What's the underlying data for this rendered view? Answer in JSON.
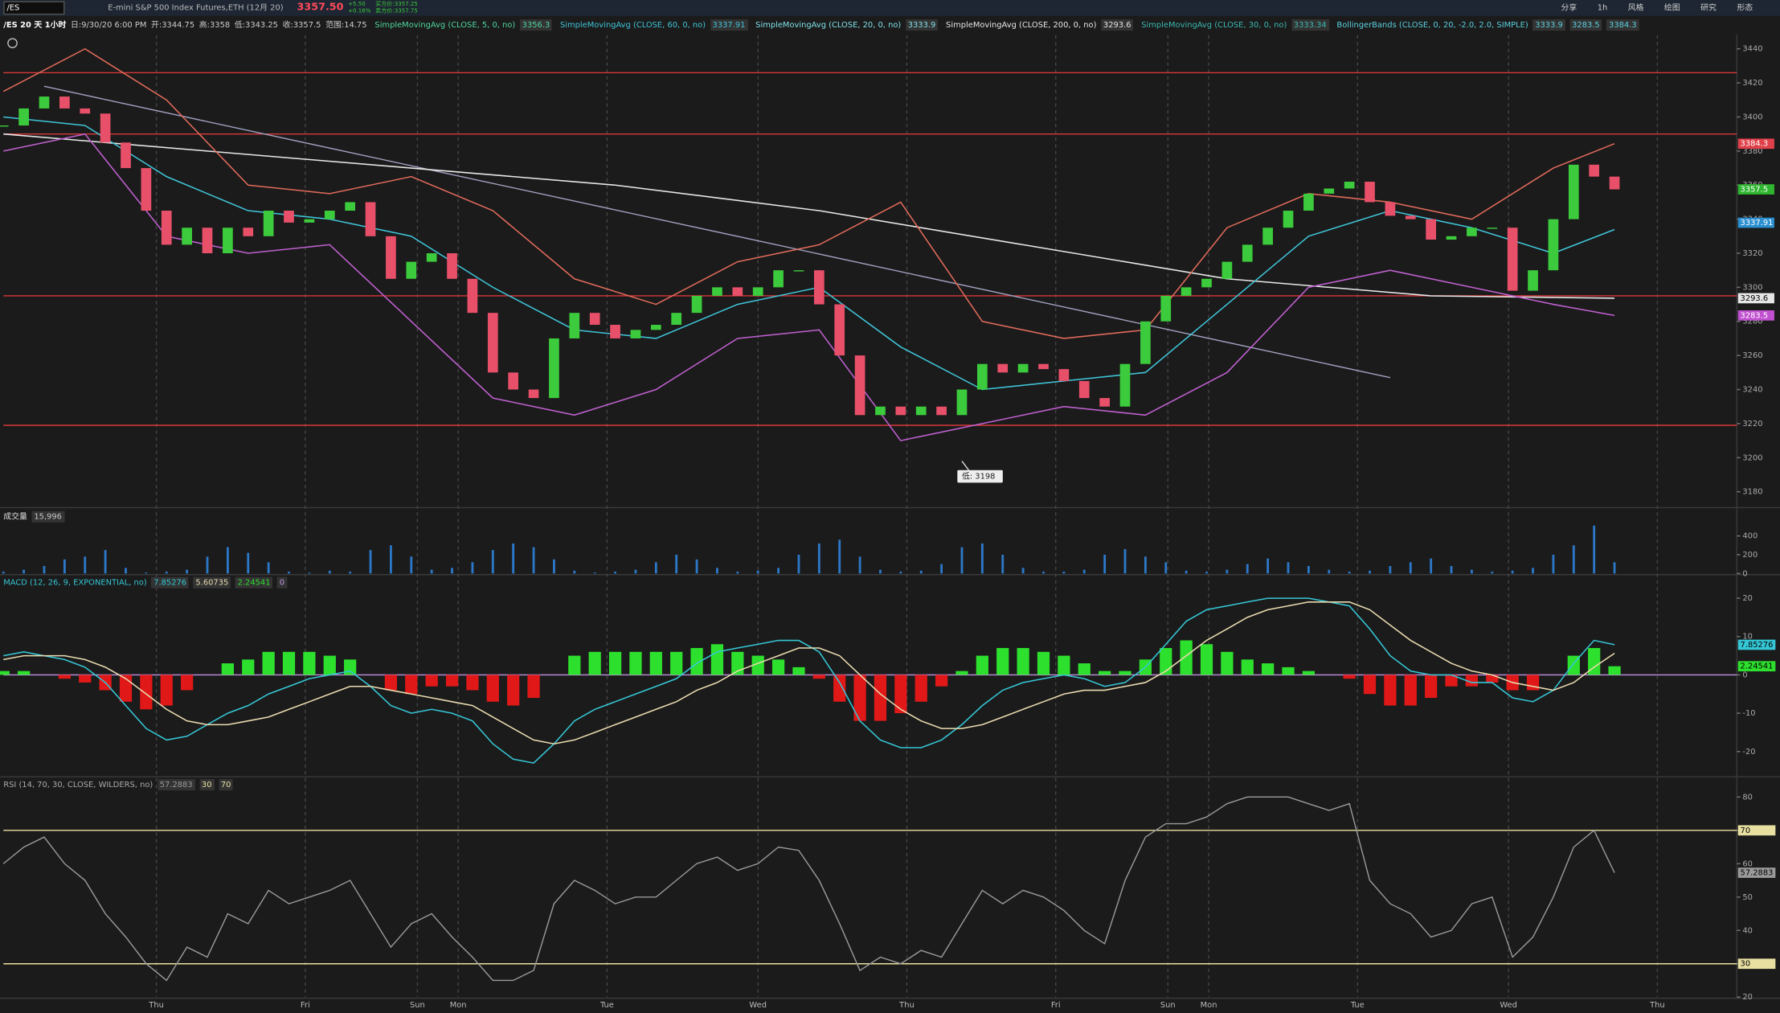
{
  "toolbar": {
    "symbol": "/ES",
    "description": "E-mini S&P 500 Index Futures,ETH (12月 20)",
    "last": "3357.50",
    "change": "+5.50",
    "change_pct": "+0.16%",
    "bid": "买方价:3357.25",
    "ask": "卖方价:3357.75",
    "buttons": [
      "分享",
      "1h",
      "风格",
      "绘图",
      "研究",
      "形态"
    ]
  },
  "header": {
    "chart_label": "/ES 20 天 1小时",
    "stats": [
      "日:9/30/20 6:00 PM",
      "开:3344.75",
      "高:3358",
      "低:3343.25",
      "收:3357.5",
      "范围:14.75"
    ],
    "studies": [
      {
        "name": "SimpleMovingAvg (CLOSE, 5, 0, no)",
        "color": "#4fd6a0",
        "values": [
          "3356.3"
        ]
      },
      {
        "name": "SimpleMovingAvg (CLOSE, 60, 0, no)",
        "color": "#3fc4d8",
        "values": [
          "3337.91"
        ]
      },
      {
        "name": "SimpleMovingAvg (CLOSE, 20, 0, no)",
        "color": "#7fe0e8",
        "values": [
          "3333.9"
        ]
      },
      {
        "name": "SimpleMovingAvg (CLOSE, 200, 0, no)",
        "color": "#e6e6e6",
        "values": [
          "3293.6"
        ]
      },
      {
        "name": "SimpleMovingAvg (CLOSE, 30, 0, no)",
        "color": "#3bb8b0",
        "values": [
          "3333.34"
        ]
      },
      {
        "name": "BollingerBands (CLOSE, 0, 20, -2.0, 2.0, SIMPLE)",
        "color": "#5ad0e0",
        "values": [
          "3333.9",
          "3283.5",
          "3384.3"
        ]
      }
    ]
  },
  "chart_data": [
    {
      "type": "candlestick",
      "values": [
        3395,
        3405,
        3412,
        3405,
        3402,
        3385,
        3370,
        3345,
        3325,
        3335,
        3320,
        3335,
        3330,
        3345,
        3338,
        3340,
        3345,
        3350,
        3330,
        3305,
        3315,
        3320,
        3305,
        3285,
        3250,
        3240,
        3235,
        3270,
        3285,
        3278,
        3270,
        3275,
        3278,
        3285,
        3295,
        3300,
        3295,
        3300,
        3310,
        3310,
        3290,
        3260,
        3225,
        3230,
        3225,
        3230,
        3225,
        3240,
        3255,
        3250,
        3255,
        3252,
        3245,
        3235,
        3230,
        3255,
        3280,
        3295,
        3300,
        3305,
        3315,
        3325,
        3335,
        3345,
        3355,
        3358,
        3362,
        3350,
        3342,
        3340,
        3328,
        3330,
        3335,
        3335,
        3298,
        3310,
        3340,
        3372,
        3365,
        3357.5
      ],
      "up_color": "#3ccb3c",
      "down_color": "#e8506a",
      "xlim": [
        0,
        85
      ],
      "xticks": [
        {
          "value": 7.5,
          "label": "Thu"
        },
        {
          "value": 14.8,
          "label": "Fri"
        },
        {
          "value": 20.3,
          "label": "Sun"
        },
        {
          "value": 22.3,
          "label": "Mon"
        },
        {
          "value": 29.6,
          "label": "Tue"
        },
        {
          "value": 37,
          "label": "Wed"
        },
        {
          "value": 44.3,
          "label": "Thu"
        },
        {
          "value": 51.6,
          "label": "Fri"
        },
        {
          "value": 57.1,
          "label": "Sun"
        },
        {
          "value": 59.1,
          "label": "Mon"
        },
        {
          "value": 66.4,
          "label": "Tue"
        },
        {
          "value": 73.8,
          "label": "Wed"
        },
        {
          "value": 81.1,
          "label": "Thu"
        }
      ],
      "ylim": [
        3172,
        3448
      ],
      "yticks": [
        3180,
        3200,
        3220,
        3240,
        3260,
        3280,
        3300,
        3320,
        3340,
        3360,
        3380,
        3400,
        3420,
        3440
      ],
      "series": [
        {
          "color": "#e8e8e8",
          "x": [
            0,
            10,
            20,
            30,
            40,
            50,
            60,
            70,
            79
          ],
          "values": [
            3390,
            3380,
            3370,
            3360,
            3345,
            3325,
            3305,
            3295,
            3293.6
          ]
        },
        {
          "color": "#e06a5a",
          "x": [
            0,
            4,
            8,
            12,
            16,
            20,
            24,
            28,
            32,
            36,
            40,
            44,
            48,
            52,
            56,
            60,
            64,
            68,
            72,
            76,
            79
          ],
          "values": [
            3415,
            3440,
            3410,
            3360,
            3355,
            3365,
            3345,
            3305,
            3290,
            3315,
            3325,
            3350,
            3280,
            3270,
            3275,
            3335,
            3355,
            3350,
            3340,
            3370,
            3384.3
          ]
        },
        {
          "color": "#c060d0",
          "x": [
            0,
            4,
            8,
            12,
            16,
            20,
            24,
            28,
            32,
            36,
            40,
            44,
            48,
            52,
            56,
            60,
            64,
            68,
            72,
            76,
            79
          ],
          "values": [
            3380,
            3390,
            3330,
            3320,
            3325,
            3280,
            3235,
            3225,
            3240,
            3270,
            3275,
            3210,
            3220,
            3230,
            3225,
            3250,
            3300,
            3310,
            3300,
            3290,
            3283.5
          ]
        },
        {
          "color": "#3fc4d8",
          "x": [
            0,
            4,
            8,
            12,
            16,
            20,
            24,
            28,
            32,
            36,
            40,
            44,
            48,
            52,
            56,
            60,
            64,
            68,
            72,
            76,
            79
          ],
          "values": [
            3400,
            3395,
            3365,
            3345,
            3340,
            3330,
            3300,
            3275,
            3270,
            3290,
            3300,
            3265,
            3240,
            3245,
            3250,
            3290,
            3330,
            3345,
            3335,
            3320,
            3333.9
          ]
        }
      ],
      "levels": [
        3426,
        3390,
        3295,
        3219
      ],
      "level_color": "#d8383a",
      "trendline": {
        "x": [
          2,
          68
        ],
        "values": [
          3418,
          3247
        ],
        "color": "#a0a0c0"
      },
      "price_tags": [
        {
          "value": 3384.3,
          "color": "#e0404a"
        },
        {
          "value": 3357.5,
          "color": "#2fb52f"
        },
        {
          "value": 3337.91,
          "color": "#2a8fd0"
        },
        {
          "value": 3293.6,
          "color": "#e6e6e6"
        },
        {
          "value": 3283.5,
          "color": "#c050d0"
        }
      ],
      "annotation": {
        "text": "低: 3198",
        "x": 47,
        "value": 3198
      }
    },
    {
      "type": "bar",
      "title": "成交量",
      "header_value": "15,996",
      "values": [
        20,
        40,
        80,
        150,
        180,
        250,
        60,
        10,
        20,
        40,
        180,
        280,
        220,
        120,
        20,
        10,
        30,
        20,
        250,
        300,
        180,
        40,
        60,
        120,
        250,
        320,
        280,
        150,
        30,
        10,
        20,
        40,
        120,
        200,
        150,
        60,
        20,
        30,
        60,
        200,
        320,
        360,
        180,
        40,
        20,
        30,
        100,
        280,
        320,
        200,
        60,
        20,
        20,
        40,
        200,
        260,
        180,
        120,
        30,
        20,
        40,
        100,
        160,
        120,
        80,
        40,
        20,
        30,
        80,
        120,
        160,
        80,
        40,
        20,
        30,
        60,
        200,
        300,
        510,
        120
      ],
      "color": "#2c78c8",
      "ylim": [
        0,
        520
      ],
      "yticks": [
        0,
        200,
        400
      ]
    },
    {
      "type": "macd",
      "title": "MACD (12, 26, 9, EXPONENTIAL, no)",
      "readouts": [
        "7.85276",
        "5.60735",
        "2.24541",
        "0"
      ],
      "series": [
        {
          "color": "#35c7d6",
          "values": [
            5,
            6,
            5,
            4,
            2,
            -2,
            -8,
            -14,
            -17,
            -16,
            -13,
            -10,
            -8,
            -5,
            -3,
            -1,
            0,
            1,
            -3,
            -8,
            -10,
            -9,
            -10,
            -12,
            -18,
            -22,
            -23,
            -18,
            -12,
            -9,
            -7,
            -5,
            -3,
            -1,
            3,
            6,
            7,
            8,
            9,
            9,
            6,
            -2,
            -12,
            -17,
            -19,
            -19,
            -17,
            -13,
            -8,
            -4,
            -2,
            -1,
            0,
            -1,
            -3,
            -2,
            2,
            8,
            14,
            17,
            18,
            19,
            20,
            20,
            20,
            19,
            18,
            12,
            5,
            1,
            0,
            0,
            -2,
            -2,
            -6,
            -7,
            -4,
            3,
            9,
            7.85276
          ]
        },
        {
          "color": "#eadbb0",
          "values": [
            4,
            5,
            5,
            5,
            4,
            2,
            -1,
            -5,
            -9,
            -12,
            -13,
            -13,
            -12,
            -11,
            -9,
            -7,
            -5,
            -3,
            -3,
            -4,
            -5,
            -6,
            -7,
            -8,
            -11,
            -14,
            -17,
            -18,
            -17,
            -15,
            -13,
            -11,
            -9,
            -7,
            -4,
            -2,
            1,
            3,
            5,
            7,
            7,
            5,
            0,
            -5,
            -9,
            -12,
            -14,
            -14,
            -13,
            -11,
            -9,
            -7,
            -5,
            -4,
            -4,
            -3,
            -2,
            1,
            5,
            9,
            12,
            15,
            17,
            18,
            19,
            19,
            19,
            17,
            13,
            9,
            6,
            3,
            1,
            0,
            -2,
            -3,
            -4,
            -2,
            2,
            5.60735
          ]
        }
      ],
      "diff": {
        "up_color": "#2ee02e",
        "down_color": "#e01818",
        "values": [
          1,
          1,
          0,
          -1,
          -2,
          -4,
          -7,
          -9,
          -8,
          -4,
          0,
          3,
          4,
          6,
          6,
          6,
          5,
          4,
          0,
          -4,
          -5,
          -3,
          -3,
          -4,
          -7,
          -8,
          -6,
          0,
          5,
          6,
          6,
          6,
          6,
          6,
          7,
          8,
          6,
          5,
          4,
          2,
          -1,
          -7,
          -12,
          -12,
          -10,
          -7,
          -3,
          1,
          5,
          7,
          7,
          6,
          5,
          3,
          1,
          1,
          4,
          7,
          9,
          8,
          6,
          4,
          3,
          2,
          1,
          0,
          -1,
          -5,
          -8,
          -8,
          -6,
          -3,
          -3,
          -2,
          -4,
          -4,
          0,
          5,
          7,
          2.24541
        ]
      },
      "zero_color": "#c090e0",
      "ylim": [
        -26,
        22
      ],
      "yticks": [
        -20,
        -10,
        0,
        10,
        20
      ],
      "tags": [
        {
          "value": 7.85276,
          "color": "#35c7d6"
        },
        {
          "value": 2.24541,
          "color": "#2ee02e"
        }
      ]
    },
    {
      "type": "line",
      "title": "RSI (14, 70, 30, CLOSE, WILDERS, no)",
      "readouts": [
        "57.2883",
        "30",
        "70"
      ],
      "values": [
        60,
        65,
        68,
        60,
        55,
        45,
        38,
        30,
        25,
        35,
        32,
        45,
        42,
        52,
        48,
        50,
        52,
        55,
        45,
        35,
        42,
        45,
        38,
        32,
        25,
        25,
        28,
        48,
        55,
        52,
        48,
        50,
        50,
        55,
        60,
        62,
        58,
        60,
        65,
        64,
        55,
        42,
        28,
        32,
        30,
        34,
        32,
        42,
        52,
        48,
        52,
        50,
        46,
        40,
        36,
        55,
        68,
        72,
        72,
        74,
        78,
        80,
        80,
        80,
        78,
        76,
        78,
        55,
        48,
        45,
        38,
        40,
        48,
        50,
        32,
        38,
        50,
        65,
        70,
        57.2883
      ],
      "color": "#9a9a9a",
      "levels": [
        30,
        70
      ],
      "level_color": "#e8e0a0",
      "ylim": [
        20,
        81.3
      ],
      "yticks": [
        20,
        30,
        40,
        50,
        60,
        70,
        80
      ],
      "tags": [
        {
          "value": 57.2883,
          "color": "#9a9a9a"
        },
        {
          "value": 70,
          "color": "#e8e0a0"
        },
        {
          "value": 30,
          "color": "#e8e0a0"
        }
      ]
    }
  ]
}
